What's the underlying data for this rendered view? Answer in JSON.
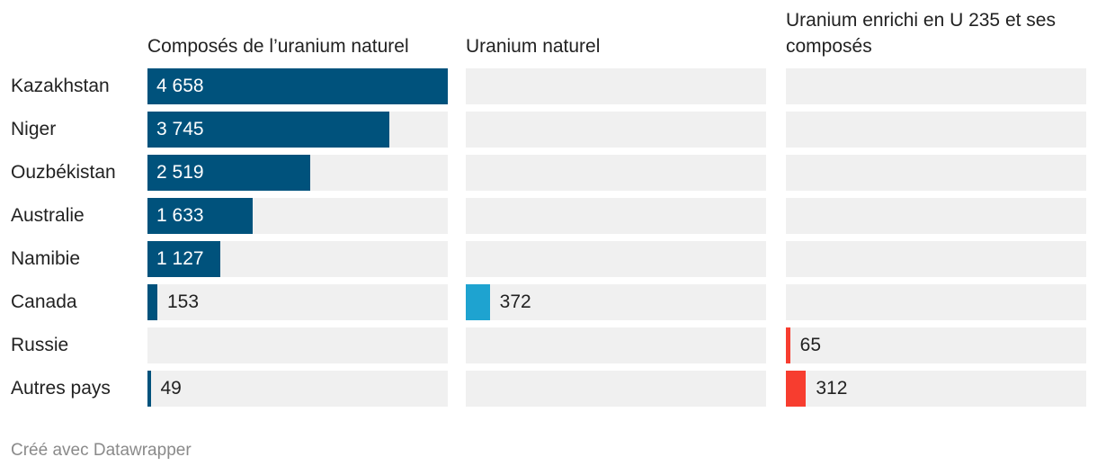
{
  "chart_data": {
    "type": "bar",
    "categories": [
      "Kazakhstan",
      "Niger",
      "Ouzbékistan",
      "Australie",
      "Namibie",
      "Canada",
      "Russie",
      "Autres pays"
    ],
    "xlim": [
      0,
      4658
    ],
    "series": [
      {
        "name": "Composés de l’uranium naturel",
        "color": "#00527c",
        "values": [
          4658,
          3745,
          2519,
          1633,
          1127,
          153,
          null,
          49
        ],
        "value_labels": [
          "4 658",
          "3 745",
          "2 519",
          "1 633",
          "1 127",
          "153",
          null,
          "49"
        ]
      },
      {
        "name": "Uranium naturel",
        "color": "#1ea3d0",
        "values": [
          null,
          null,
          null,
          null,
          null,
          372,
          null,
          null
        ],
        "value_labels": [
          null,
          null,
          null,
          null,
          null,
          "372",
          null,
          null
        ]
      },
      {
        "name": "Uranium enrichi en U 235 et ses composés",
        "color": "#f73d2f",
        "values": [
          null,
          null,
          null,
          null,
          null,
          null,
          65,
          312
        ],
        "value_labels": [
          null,
          null,
          null,
          null,
          null,
          null,
          "65",
          "312"
        ]
      }
    ],
    "credit": "Créé avec Datawrapper"
  }
}
